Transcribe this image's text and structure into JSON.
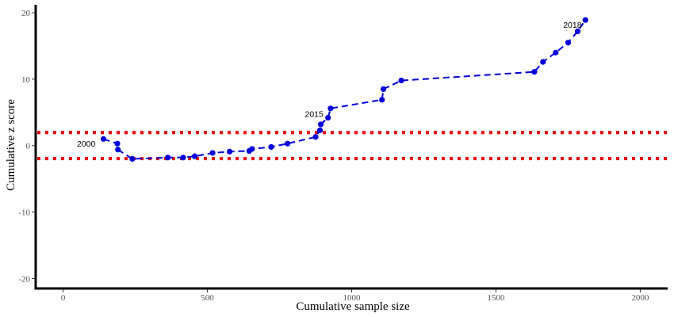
{
  "chart_data": {
    "type": "line",
    "title": "",
    "xlabel": "Cumulative sample size",
    "ylabel": "Cumulative z score",
    "xlim": [
      -95,
      2095
    ],
    "ylim": [
      -21.5,
      21.2
    ],
    "x_ticks": [
      0,
      500,
      1000,
      1500,
      2000
    ],
    "y_ticks": [
      -20,
      -10,
      0,
      10,
      20
    ],
    "x_tick_labels": [
      "0",
      "500",
      "1000",
      "1500",
      "2000"
    ],
    "y_tick_labels": [
      "-20",
      "-10",
      "0",
      "10",
      "20"
    ],
    "grid": false,
    "legend": "none",
    "series": [
      {
        "style": "dashed line with points",
        "color": "#0000dd",
        "x": [
          140,
          188,
          190,
          240,
          363,
          416,
          456,
          518,
          577,
          645,
          655,
          721,
          778,
          875,
          890,
          893,
          918,
          927,
          1105,
          1110,
          1172,
          1633,
          1663,
          1707,
          1750,
          1783,
          1810
        ],
        "y": [
          1.0,
          0.3,
          -0.6,
          -2.0,
          -1.8,
          -1.8,
          -1.6,
          -1.1,
          -0.9,
          -0.8,
          -0.5,
          -0.2,
          0.3,
          1.3,
          2.3,
          3.2,
          4.2,
          5.6,
          6.9,
          8.5,
          9.8,
          11.1,
          12.6,
          14.0,
          15.5,
          17.2,
          18.9
        ]
      }
    ],
    "reference_lines": [
      {
        "y": 1.96,
        "color": "#ee0000",
        "style": "dotted"
      },
      {
        "y": -1.96,
        "color": "#ee0000",
        "style": "dotted"
      }
    ],
    "annotations": [
      {
        "text": "2000",
        "x": 80,
        "y": 0.3
      },
      {
        "text": "2015",
        "x": 870,
        "y": 4.8
      },
      {
        "text": "2018",
        "x": 1765,
        "y": 18.2
      }
    ]
  }
}
